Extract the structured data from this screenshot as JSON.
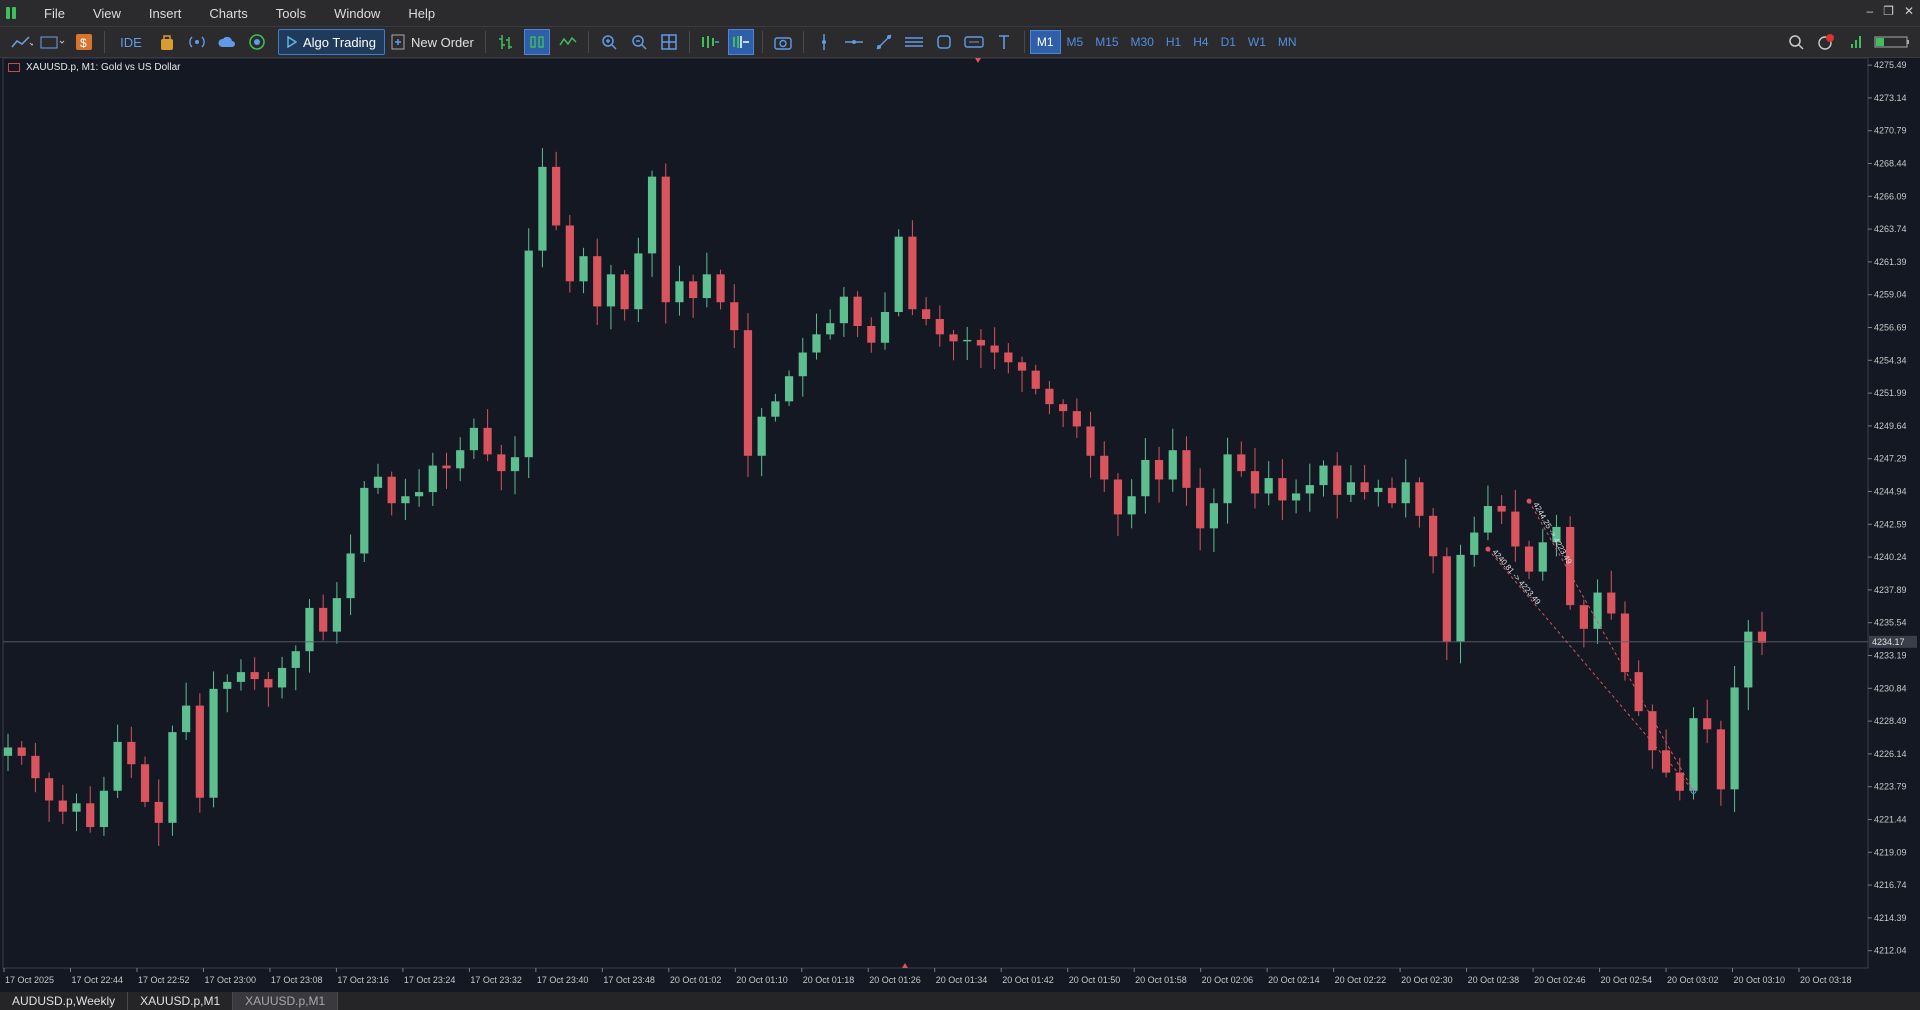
{
  "menu": {
    "items": [
      "File",
      "View",
      "Insert",
      "Charts",
      "Tools",
      "Window",
      "Help"
    ]
  },
  "toolbar": {
    "ide_label": "IDE",
    "algo_label": "Algo Trading",
    "new_order_label": "New Order",
    "timeframes": [
      "M1",
      "M5",
      "M15",
      "M30",
      "H1",
      "H4",
      "D1",
      "W1",
      "MN"
    ],
    "active_timeframe": "M1",
    "icons": [
      "line-chart-icon",
      "chart-template-icon",
      "dollar-icon",
      "ide-icon",
      "market-icon",
      "signals-icon",
      "cloud-icon",
      "vps-icon",
      "play-icon",
      "new-order-icon",
      "bar-chart-icon",
      "candle-chart-icon",
      "line-icon",
      "zoom-in-icon",
      "zoom-out-icon",
      "tile-windows-icon",
      "scroll-icon",
      "autoscroll-icon",
      "screenshot-icon",
      "vertical-line-icon",
      "horizontal-line-icon",
      "trendline-icon",
      "channel-icon",
      "shapes-icon",
      "label-icon",
      "text-icon",
      "search-icon",
      "notification-icon",
      "signal-strength-icon",
      "battery-icon"
    ]
  },
  "chart": {
    "title": "XAUUSD.p, M1:  Gold vs US Dollar",
    "current_price": "4234.17",
    "colors": {
      "bg": "#141823",
      "bull": "#5dbf8f",
      "bear": "#d9545c",
      "grid": "#20242e",
      "text": "#c8c8c8"
    }
  },
  "chart_data": {
    "type": "candlestick",
    "symbol": "XAUUSD.p",
    "timeframe": "M1",
    "y_ticks": [
      "4275.49",
      "4273.14",
      "4270.79",
      "4268.44",
      "4266.09",
      "4263.74",
      "4261.39",
      "4259.04",
      "4256.69",
      "4254.34",
      "4251.99",
      "4249.64",
      "4247.29",
      "4244.94",
      "4242.59",
      "4240.24",
      "4237.89",
      "4235.54",
      "4233.19",
      "4230.84",
      "4228.49",
      "4226.14",
      "4223.79",
      "4221.44",
      "4219.09",
      "4216.74",
      "4214.39",
      "4212.04"
    ],
    "ylim": [
      4210.8,
      4276.0
    ],
    "x_ticks": [
      "17 Oct 2025",
      "17 Oct 22:44",
      "17 Oct 22:52",
      "17 Oct 23:00",
      "17 Oct 23:08",
      "17 Oct 23:16",
      "17 Oct 23:24",
      "17 Oct 23:32",
      "17 Oct 23:40",
      "17 Oct 23:48",
      "20 Oct 01:02",
      "20 Oct 01:10",
      "20 Oct 01:18",
      "20 Oct 01:26",
      "20 Oct 01:34",
      "20 Oct 01:42",
      "20 Oct 01:50",
      "20 Oct 01:58",
      "20 Oct 02:06",
      "20 Oct 02:14",
      "20 Oct 02:22",
      "20 Oct 02:30",
      "20 Oct 02:38",
      "20 Oct 02:46",
      "20 Oct 02:54",
      "20 Oct 03:02",
      "20 Oct 03:10",
      "20 Oct 03:18"
    ],
    "close_trend": [
      4226.6,
      4226.0,
      4224.4,
      4222.8,
      4222.0,
      4222.6,
      4220.9,
      4223.5,
      4227.0,
      4225.4,
      4222.7,
      4221.2,
      4227.7,
      4229.6,
      4223.0,
      4230.8,
      4231.3,
      4232.0,
      4231.5,
      4230.9,
      4232.3,
      4233.5,
      4236.6,
      4234.9,
      4237.3,
      4240.5,
      4245.2,
      4246.0,
      4244.1,
      4244.6,
      4244.9,
      4246.8,
      4246.6,
      4247.9,
      4249.5,
      4247.6,
      4246.4,
      4247.4,
      4262.2,
      4268.2,
      4264.0,
      4260.0,
      4261.8,
      4258.2,
      4260.5,
      4258.0,
      4262.0,
      4267.5,
      4258.5,
      4260.0,
      4258.8,
      4260.5,
      4258.5,
      4256.5,
      4247.5,
      4250.3,
      4251.4,
      4253.2,
      4254.9,
      4256.2,
      4257.0,
      4258.9,
      4256.8,
      4255.6,
      4257.8,
      4263.2,
      4258.0,
      4257.3,
      4256.2,
      4255.7,
      4255.8,
      4255.4,
      4254.9,
      4254.2,
      4253.6,
      4252.3,
      4251.2,
      4250.7,
      4249.6,
      4247.5,
      4245.8,
      4243.3,
      4244.6,
      4247.2,
      4245.8,
      4247.9,
      4245.2,
      4242.3,
      4244.1,
      4247.6,
      4246.4,
      4244.8,
      4245.9,
      4244.3,
      4244.8,
      4245.4,
      4246.8,
      4244.7,
      4245.6,
      4244.9,
      4245.2,
      4244.1,
      4245.6,
      4243.2,
      4240.3,
      4234.2,
      4240.4,
      4242.0,
      4243.9,
      4243.5,
      4241.0,
      4239.2,
      4241.3,
      4242.4,
      4236.8,
      4235.1,
      4237.7,
      4236.2,
      4232.0,
      4229.2,
      4226.4,
      4224.8,
      4223.5,
      4228.7,
      4227.9,
      4223.6,
      4230.9,
      4234.9,
      4234.1
    ]
  },
  "drawings": {
    "label_a": "4240.81 -> 4223.49",
    "label_b": "4244.25 -> 4223.49"
  },
  "tabs": [
    {
      "label": "AUDUSD.p,Weekly",
      "active": false
    },
    {
      "label": "XAUUSD.p,M1",
      "active": false
    },
    {
      "label": "XAUUSD.p,M1",
      "active": true
    }
  ]
}
